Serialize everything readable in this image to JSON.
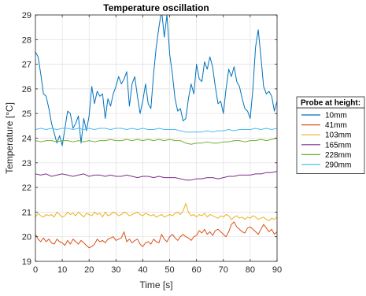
{
  "chart_data": {
    "type": "line",
    "title": "Temperature oscillation",
    "xlabel": "Time [s]",
    "ylabel": "Temperature [°C]",
    "xlim": [
      0,
      90
    ],
    "ylim": [
      19,
      29
    ],
    "xticks": [
      0,
      10,
      20,
      30,
      40,
      50,
      60,
      70,
      80,
      90
    ],
    "yticks": [
      19,
      20,
      21,
      22,
      23,
      24,
      25,
      26,
      27,
      28,
      29
    ],
    "grid": true,
    "legend": {
      "title": "Probe at height:",
      "placement": "outside-right"
    },
    "series": [
      {
        "name": "10mm",
        "color": "#0072BD",
        "x": [
          0,
          1,
          2,
          3,
          4,
          5,
          6,
          7,
          8,
          9,
          10,
          11,
          12,
          13,
          14,
          15,
          16,
          17,
          18,
          19,
          20,
          21,
          22,
          23,
          24,
          25,
          26,
          27,
          28,
          29,
          30,
          31,
          32,
          33,
          34,
          35,
          36,
          37,
          38,
          39,
          40,
          41,
          42,
          43,
          44,
          45,
          46,
          47,
          48,
          49,
          50,
          51,
          52,
          53,
          54,
          55,
          56,
          57,
          58,
          59,
          60,
          61,
          62,
          63,
          64,
          65,
          66,
          67,
          68,
          69,
          70,
          71,
          72,
          73,
          74,
          75,
          76,
          77,
          78,
          79,
          80,
          81,
          82,
          83,
          84,
          85,
          86,
          87,
          88,
          89,
          90
        ],
        "y": [
          27.5,
          27.3,
          26.6,
          25.8,
          25.7,
          25.2,
          24.6,
          24.2,
          23.8,
          24.1,
          23.7,
          24.4,
          25.1,
          25.0,
          24.4,
          24.6,
          24.9,
          23.8,
          24.8,
          24.3,
          24.9,
          26.1,
          25.4,
          25.9,
          25.7,
          25.8,
          24.8,
          25.6,
          25.3,
          25.8,
          26.1,
          26.5,
          26.2,
          26.4,
          26.7,
          25.3,
          26.2,
          26.5,
          25.7,
          25.0,
          25.5,
          26.2,
          25.4,
          25.2,
          26.6,
          27.7,
          28.5,
          29.2,
          28.1,
          29.0,
          27.4,
          26.6,
          25.6,
          25.1,
          25.2,
          24.7,
          24.8,
          25.6,
          26.2,
          25.8,
          27.0,
          26.4,
          26.3,
          27.1,
          26.8,
          27.3,
          26.9,
          26.1,
          25.4,
          25.5,
          25.0,
          26.0,
          26.8,
          26.5,
          26.9,
          26.3,
          26.1,
          25.6,
          25.2,
          25.1,
          24.8,
          26.0,
          27.7,
          28.4,
          27.3,
          26.1,
          25.8,
          25.9,
          25.7,
          25.1,
          25.5
        ]
      },
      {
        "name": "41mm",
        "color": "#D95319",
        "x": [
          0,
          1,
          2,
          3,
          4,
          5,
          6,
          7,
          8,
          9,
          10,
          11,
          12,
          13,
          14,
          15,
          16,
          17,
          18,
          19,
          20,
          21,
          22,
          23,
          24,
          25,
          26,
          27,
          28,
          29,
          30,
          31,
          32,
          33,
          34,
          35,
          36,
          37,
          38,
          39,
          40,
          41,
          42,
          43,
          44,
          45,
          46,
          47,
          48,
          49,
          50,
          51,
          52,
          53,
          54,
          55,
          56,
          57,
          58,
          59,
          60,
          61,
          62,
          63,
          64,
          65,
          66,
          67,
          68,
          69,
          70,
          71,
          72,
          73,
          74,
          75,
          76,
          77,
          78,
          79,
          80,
          81,
          82,
          83,
          84,
          85,
          86,
          87,
          88,
          89,
          90
        ],
        "y": [
          20.1,
          19.9,
          19.8,
          19.95,
          19.8,
          19.9,
          19.75,
          19.7,
          19.9,
          19.8,
          19.75,
          19.65,
          19.85,
          19.7,
          19.9,
          19.8,
          19.7,
          19.85,
          19.75,
          19.65,
          19.55,
          19.6,
          19.7,
          19.9,
          19.8,
          19.85,
          19.75,
          19.9,
          19.95,
          20.0,
          19.85,
          19.9,
          19.95,
          20.2,
          19.8,
          19.9,
          19.75,
          19.85,
          19.9,
          19.7,
          19.6,
          19.75,
          19.8,
          19.7,
          19.9,
          19.8,
          19.75,
          20.1,
          19.9,
          19.8,
          20.0,
          20.1,
          19.95,
          19.85,
          20.0,
          20.1,
          20.0,
          19.95,
          19.85,
          20.0,
          20.05,
          20.25,
          20.15,
          20.3,
          20.1,
          20.2,
          20.05,
          20.25,
          20.3,
          20.2,
          20.1,
          20.0,
          20.2,
          20.5,
          20.6,
          20.4,
          20.3,
          20.2,
          20.15,
          20.35,
          20.4,
          20.3,
          20.2,
          20.1,
          20.3,
          20.5,
          20.35,
          20.2,
          20.3,
          20.1,
          20.2
        ]
      },
      {
        "name": "103mm",
        "color": "#EDB120",
        "x": [
          0,
          1,
          2,
          3,
          4,
          5,
          6,
          7,
          8,
          9,
          10,
          11,
          12,
          13,
          14,
          15,
          16,
          17,
          18,
          19,
          20,
          21,
          22,
          23,
          24,
          25,
          26,
          27,
          28,
          29,
          30,
          31,
          32,
          33,
          34,
          35,
          36,
          37,
          38,
          39,
          40,
          41,
          42,
          43,
          44,
          45,
          46,
          47,
          48,
          49,
          50,
          51,
          52,
          53,
          54,
          55,
          56,
          57,
          58,
          59,
          60,
          61,
          62,
          63,
          64,
          65,
          66,
          67,
          68,
          69,
          70,
          71,
          72,
          73,
          74,
          75,
          76,
          77,
          78,
          79,
          80,
          81,
          82,
          83,
          84,
          85,
          86,
          87,
          88,
          89,
          90
        ],
        "y": [
          20.8,
          20.95,
          20.85,
          20.8,
          20.9,
          20.85,
          20.9,
          20.8,
          21.0,
          20.9,
          20.8,
          20.85,
          21.0,
          20.9,
          20.95,
          20.85,
          21.0,
          20.9,
          20.8,
          20.95,
          20.9,
          20.85,
          21.0,
          20.9,
          20.95,
          20.8,
          21.0,
          20.85,
          20.9,
          21.0,
          20.95,
          20.85,
          20.9,
          21.0,
          20.95,
          20.85,
          20.9,
          20.95,
          21.0,
          20.9,
          20.85,
          20.95,
          20.9,
          20.85,
          20.9,
          20.8,
          20.85,
          20.9,
          20.8,
          20.85,
          20.9,
          20.85,
          20.95,
          21.0,
          20.9,
          21.05,
          21.35,
          21.0,
          20.85,
          20.9,
          20.8,
          20.9,
          20.85,
          20.95,
          20.8,
          20.9,
          20.85,
          20.8,
          20.75,
          20.85,
          20.8,
          20.9,
          20.85,
          20.7,
          20.8,
          20.85,
          20.75,
          20.8,
          20.7,
          20.8,
          20.75,
          20.85,
          20.8,
          20.7,
          20.75,
          20.8,
          20.7,
          20.65,
          20.75,
          20.7,
          20.8
        ]
      },
      {
        "name": "165mm",
        "color": "#7E2F8E",
        "x": [
          0,
          2,
          4,
          6,
          8,
          10,
          12,
          14,
          16,
          18,
          20,
          22,
          24,
          26,
          28,
          30,
          32,
          34,
          36,
          38,
          40,
          42,
          44,
          46,
          48,
          50,
          52,
          54,
          56,
          58,
          60,
          62,
          64,
          66,
          68,
          70,
          72,
          74,
          76,
          78,
          80,
          82,
          84,
          86,
          88,
          90
        ],
        "y": [
          22.55,
          22.5,
          22.55,
          22.45,
          22.5,
          22.55,
          22.5,
          22.45,
          22.5,
          22.55,
          22.45,
          22.5,
          22.5,
          22.45,
          22.5,
          22.45,
          22.45,
          22.5,
          22.45,
          22.4,
          22.45,
          22.45,
          22.4,
          22.45,
          22.4,
          22.4,
          22.4,
          22.35,
          22.3,
          22.3,
          22.35,
          22.35,
          22.4,
          22.4,
          22.35,
          22.4,
          22.45,
          22.45,
          22.5,
          22.5,
          22.5,
          22.55,
          22.55,
          22.6,
          22.6,
          22.65
        ]
      },
      {
        "name": "228mm",
        "color": "#77AC30",
        "x": [
          0,
          2,
          4,
          6,
          8,
          10,
          12,
          14,
          16,
          18,
          20,
          22,
          24,
          26,
          28,
          30,
          32,
          34,
          36,
          38,
          40,
          42,
          44,
          46,
          48,
          50,
          52,
          54,
          56,
          58,
          60,
          62,
          64,
          66,
          68,
          70,
          72,
          74,
          76,
          78,
          80,
          82,
          84,
          86,
          88,
          90
        ],
        "y": [
          23.9,
          23.85,
          23.9,
          23.9,
          23.85,
          23.9,
          23.9,
          23.85,
          23.9,
          23.85,
          23.9,
          23.85,
          23.9,
          23.9,
          23.95,
          23.9,
          23.9,
          23.95,
          23.9,
          23.95,
          23.9,
          23.95,
          23.9,
          23.95,
          23.9,
          23.95,
          23.9,
          23.9,
          23.8,
          23.75,
          23.8,
          23.8,
          23.85,
          23.8,
          23.8,
          23.85,
          23.85,
          23.9,
          23.9,
          23.85,
          23.9,
          23.9,
          23.95,
          23.9,
          23.95,
          24.0
        ]
      },
      {
        "name": "290mm",
        "color": "#4DBEEE",
        "x": [
          0,
          2,
          4,
          6,
          8,
          10,
          12,
          14,
          16,
          18,
          20,
          22,
          24,
          26,
          28,
          30,
          32,
          34,
          36,
          38,
          40,
          42,
          44,
          46,
          48,
          50,
          52,
          54,
          56,
          58,
          60,
          62,
          64,
          66,
          68,
          70,
          72,
          74,
          76,
          78,
          80,
          82,
          84,
          86,
          88,
          90
        ],
        "y": [
          24.35,
          24.4,
          24.35,
          24.4,
          24.35,
          24.4,
          24.4,
          24.35,
          24.4,
          24.35,
          24.4,
          24.35,
          24.4,
          24.4,
          24.35,
          24.4,
          24.4,
          24.35,
          24.4,
          24.35,
          24.4,
          24.35,
          24.35,
          24.4,
          24.35,
          24.35,
          24.35,
          24.3,
          24.25,
          24.25,
          24.25,
          24.25,
          24.3,
          24.25,
          24.3,
          24.3,
          24.35,
          24.3,
          24.35,
          24.35,
          24.35,
          24.4,
          24.35,
          24.4,
          24.35,
          24.4
        ]
      }
    ]
  }
}
